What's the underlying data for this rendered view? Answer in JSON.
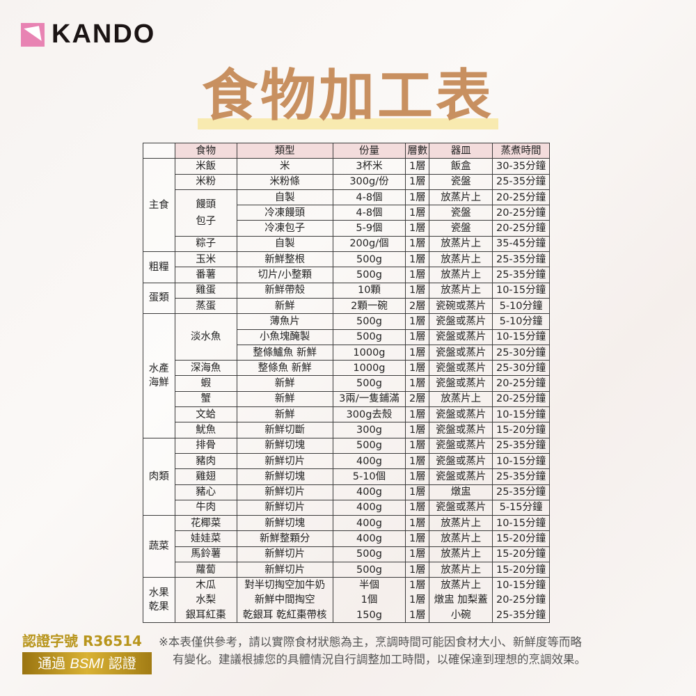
{
  "brand": {
    "name": "KANDO",
    "accent": "#e883b3"
  },
  "title": "食物加工表",
  "table": {
    "headers": [
      "食物",
      "類型",
      "份量",
      "層數",
      "器皿",
      "蒸煮時間"
    ],
    "categories": [
      {
        "name": "主食",
        "groups": [
          {
            "food": "米飯",
            "rows": [
              [
                "米",
                "3杯米",
                "1層",
                "飯盒",
                "30-35分鐘"
              ]
            ]
          },
          {
            "food": "米粉",
            "rows": [
              [
                "米粉條",
                "300g/份",
                "1層",
                "瓷盤",
                "25-35分鐘"
              ]
            ]
          },
          {
            "food": "饅頭\n包子",
            "rows": [
              [
                "自製",
                "4-8個",
                "1層",
                "放蒸片上",
                "20-25分鐘"
              ],
              [
                "冷凍饅頭",
                "4-8個",
                "1層",
                "瓷盤",
                "20-25分鐘"
              ],
              [
                "冷凍包子",
                "5-9個",
                "1層",
                "瓷盤",
                "20-25分鐘"
              ]
            ]
          },
          {
            "food": "粽子",
            "rows": [
              [
                "自製",
                "200g/個",
                "1層",
                "放蒸片上",
                "35-45分鐘"
              ]
            ]
          }
        ]
      },
      {
        "name": "粗糧",
        "groups": [
          {
            "food": "玉米",
            "rows": [
              [
                "新鮮整根",
                "500g",
                "1層",
                "放蒸片上",
                "25-35分鐘"
              ]
            ]
          },
          {
            "food": "番薯",
            "rows": [
              [
                "切片/小整顆",
                "500g",
                "1層",
                "放蒸片上",
                "25-35分鐘"
              ]
            ]
          }
        ]
      },
      {
        "name": "蛋類",
        "groups": [
          {
            "food": "雞蛋",
            "rows": [
              [
                "新鮮帶殼",
                "10顆",
                "1層",
                "放蒸片上",
                "10-15分鐘"
              ]
            ]
          },
          {
            "food": "蒸蛋",
            "rows": [
              [
                "新鮮",
                "2顆一碗",
                "2層",
                "瓷碗或蒸片",
                "5-10分鐘"
              ]
            ]
          }
        ]
      },
      {
        "name": "水產\n海鮮",
        "groups": [
          {
            "food": "淡水魚",
            "rows": [
              [
                "薄魚片",
                "500g",
                "1層",
                "瓷盤或蒸片",
                "5-10分鐘"
              ],
              [
                "小魚塊醃製",
                "500g",
                "1層",
                "瓷盤或蒸片",
                "10-15分鐘"
              ],
              [
                "整條鱸魚 新鮮",
                "1000g",
                "1層",
                "瓷盤或蒸片",
                "25-30分鐘"
              ]
            ]
          },
          {
            "food": "深海魚",
            "rows": [
              [
                "整條魚 新鮮",
                "1000g",
                "1層",
                "瓷盤或蒸片",
                "25-30分鐘"
              ]
            ]
          },
          {
            "food": "蝦",
            "rows": [
              [
                "新鮮",
                "500g",
                "1層",
                "瓷盤或蒸片",
                "20-25分鐘"
              ]
            ]
          },
          {
            "food": "蟹",
            "rows": [
              [
                "新鮮",
                "3兩/一隻鋪滿",
                "2層",
                "放蒸片上",
                "20-25分鐘"
              ]
            ]
          },
          {
            "food": "文蛤",
            "rows": [
              [
                "新鮮",
                "300g去殼",
                "1層",
                "瓷盤或蒸片",
                "10-15分鐘"
              ]
            ]
          },
          {
            "food": "魷魚",
            "rows": [
              [
                "新鮮切斷",
                "300g",
                "1層",
                "瓷盤或蒸片",
                "15-20分鐘"
              ]
            ]
          }
        ]
      },
      {
        "name": "肉類",
        "groups": [
          {
            "food": "排骨",
            "rows": [
              [
                "新鮮切塊",
                "500g",
                "1層",
                "瓷盤或蒸片",
                "25-35分鐘"
              ]
            ]
          },
          {
            "food": "豬肉",
            "rows": [
              [
                "新鮮切片",
                "400g",
                "1層",
                "瓷盤或蒸片",
                "10-15分鐘"
              ]
            ]
          },
          {
            "food": "雞翅",
            "rows": [
              [
                "新鮮切塊",
                "5-10個",
                "1層",
                "瓷盤或蒸片",
                "25-35分鐘"
              ]
            ]
          },
          {
            "food": "豬心",
            "rows": [
              [
                "新鮮切片",
                "400g",
                "1層",
                "燉盅",
                "25-35分鐘"
              ]
            ]
          },
          {
            "food": "牛肉",
            "rows": [
              [
                "新鮮切片",
                "400g",
                "1層",
                "瓷盤或蒸片",
                "5-15分鐘"
              ]
            ]
          }
        ]
      },
      {
        "name": "蔬菜",
        "groups": [
          {
            "food": "花椰菜",
            "rows": [
              [
                "新鮮切塊",
                "400g",
                "1層",
                "放蒸片上",
                "10-15分鐘"
              ]
            ]
          },
          {
            "food": "娃娃菜",
            "rows": [
              [
                "新鮮整顆分",
                "400g",
                "1層",
                "放蒸片上",
                "15-20分鐘"
              ]
            ]
          },
          {
            "food": "馬鈴薯",
            "rows": [
              [
                "新鮮切片",
                "500g",
                "1層",
                "放蒸片上",
                "15-20分鐘"
              ]
            ]
          },
          {
            "food": "蘿蔔",
            "rows": [
              [
                "新鮮切片",
                "500g",
                "1層",
                "放蒸片上",
                "15-20分鐘"
              ]
            ]
          }
        ]
      },
      {
        "name": "水果\n乾果",
        "borderless": true,
        "groups": [
          {
            "food": "木瓜",
            "rows": [
              [
                "對半切掏空加牛奶",
                "半個",
                "1層",
                "放蒸片上",
                "10-15分鐘"
              ]
            ]
          },
          {
            "food": "水梨",
            "rows": [
              [
                "新鮮中間掏空",
                "1個",
                "1層",
                "燉盅 加梨蓋",
                "20-25分鐘"
              ]
            ]
          },
          {
            "food": "銀耳紅棗",
            "rows": [
              [
                "乾銀耳 乾紅棗帶核",
                "150g",
                "1層",
                "小碗",
                "25-35分鐘"
              ]
            ]
          }
        ]
      }
    ]
  },
  "certification": {
    "number": "認證字號 R36514",
    "badge_prefix": "通過 ",
    "badge_mark": "BSMI",
    "badge_suffix": " 認證"
  },
  "note": {
    "line1": "※本表僅供參考，請以實際食材狀態為主，烹調時間可能因食材大小、新鮮度等而略",
    "line2": "有變化。建議根據您的具體情況自行調整加工時間，以確保達到理想的烹調效果。"
  }
}
